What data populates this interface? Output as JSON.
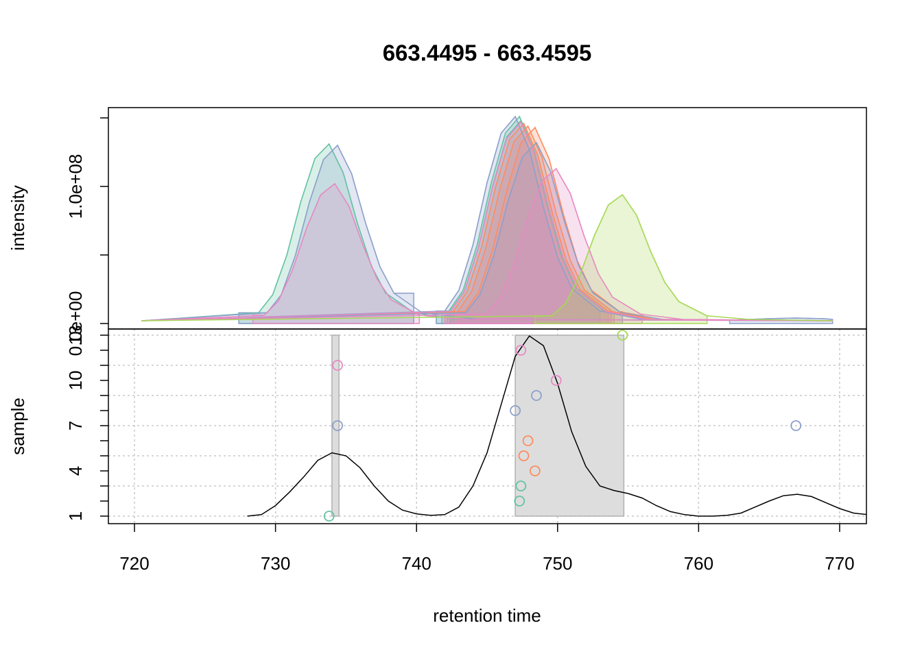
{
  "chart_data": [
    {
      "type": "area",
      "title": "663.4495 - 663.4595",
      "ylabel": "intensity",
      "xlim": [
        718.15,
        771.9
      ],
      "ylim": [
        -4000000,
        157500000
      ],
      "yticks": [
        {
          "value": 0,
          "label": "0.0e+00"
        },
        {
          "value": 100000000,
          "label": "1.0e+08"
        }
      ],
      "yminorticks": [
        50000000,
        150000000
      ],
      "fill_opacity": 0.25,
      "series": [
        {
          "color": "#66c2a5",
          "x": [
            720.5,
            728.8,
            729.8,
            730.8,
            731.8,
            732.8,
            733.8,
            734.8,
            735.8,
            736.8,
            737.8,
            739.8,
            742.8,
            769.5
          ],
          "values": [
            2000000,
            7900000,
            21000000,
            49800000,
            89100000,
            120500000,
            131000000,
            110000000,
            73400000,
            41900000,
            22300000,
            7900000,
            3000000,
            2000000
          ],
          "peaks": [
            [
              727.4,
              739.8
            ]
          ]
        },
        {
          "color": "#66c2a5",
          "x": [
            720.5,
            742.3,
            743.3,
            744.3,
            745.3,
            746.3,
            747.3,
            748.3,
            749.3,
            750.3,
            751.3,
            753.3,
            756.3,
            769.5
          ],
          "values": [
            2000000,
            9100000,
            24200000,
            57400000,
            102700000,
            138900000,
            151000000,
            126800000,
            84600000,
            48300000,
            25700000,
            9100000,
            3000000,
            2000000
          ],
          "peaks": [
            [
              741.4,
              753.6
            ]
          ]
        },
        {
          "color": "#66c2a5",
          "x": [
            720.5,
            742.4,
            743.4,
            744.4,
            745.4,
            746.4,
            747.4,
            748.4,
            749.4,
            750.4,
            751.4,
            753.4,
            756.4,
            769.5
          ],
          "values": [
            2000000,
            8900000,
            23700000,
            56200000,
            100600000,
            136200000,
            148000000,
            124300000,
            82900000,
            47400000,
            25200000,
            8900000,
            3000000,
            2000000
          ],
          "peaks": [
            [
              741.8,
              753.8
            ]
          ]
        },
        {
          "color": "#fc8d62",
          "x": [
            720.5,
            743.4,
            744.4,
            745.4,
            746.4,
            747.4,
            748.4,
            749.4,
            750.4,
            751.4,
            752.4,
            754.4,
            757.4,
            769.5
          ],
          "values": [
            2000000,
            8600000,
            22900000,
            54300000,
            97200000,
            131600000,
            143000000,
            120100000,
            80100000,
            45800000,
            24300000,
            8600000,
            3000000,
            2000000
          ],
          "peaks": [
            [
              742.2,
              754.6
            ]
          ]
        },
        {
          "color": "#fc8d62",
          "x": [
            720.5,
            742.6,
            743.6,
            744.6,
            745.6,
            746.6,
            747.6,
            748.6,
            749.6,
            750.6,
            751.6,
            753.6,
            756.6,
            769.5
          ],
          "values": [
            2000000,
            8800000,
            23400000,
            55500000,
            99300000,
            134300000,
            146000000,
            122600000,
            81800000,
            46700000,
            24800000,
            8800000,
            3000000,
            2000000
          ],
          "peaks": [
            [
              742.0,
              753.8
            ]
          ]
        },
        {
          "color": "#fc8d62",
          "x": [
            720.5,
            742.9,
            743.9,
            744.9,
            745.9,
            746.9,
            747.9,
            748.9,
            749.9,
            750.9,
            751.9,
            753.9,
            756.9,
            769.5
          ],
          "values": [
            2000000,
            8600000,
            23000000,
            54700000,
            97900000,
            132500000,
            144000000,
            121000000,
            80600000,
            46100000,
            24500000,
            8600000,
            3000000,
            2000000
          ],
          "peaks": [
            [
              742.6,
              754.0
            ]
          ]
        },
        {
          "color": "#8da0cb",
          "x": [
            720.5,
            729.4,
            730.4,
            731.4,
            732.4,
            733.4,
            734.4,
            735.4,
            736.4,
            737.4,
            738.4,
            740.4,
            744.4,
            762.4,
            764.9,
            766.9,
            768.9,
            769.5
          ],
          "values": [
            2000000,
            7800000,
            20800000,
            49400000,
            88400000,
            119600000,
            130000000,
            109200000,
            72800000,
            41600000,
            22100000,
            7800000,
            3000000,
            2500000,
            3500000,
            4000000,
            3500000,
            3000000
          ],
          "peaks": [
            [
              727.4,
              739.8
            ],
            [
              762.2,
              769.5
            ]
          ]
        },
        {
          "color": "#8da0cb",
          "x": [
            720.5,
            742.0,
            743.0,
            744.0,
            745.0,
            746.0,
            747.0,
            748.0,
            749.0,
            750.0,
            751.0,
            753.0,
            756.0,
            769.5
          ],
          "values": [
            2000000,
            9100000,
            24200000,
            57400000,
            102700000,
            138900000,
            151000000,
            126800000,
            84600000,
            48300000,
            25700000,
            9100000,
            3000000,
            2000000
          ],
          "peaks": [
            [
              741.4,
              753.0
            ]
          ]
        },
        {
          "color": "#8da0cb",
          "x": [
            720.5,
            743.5,
            744.5,
            745.5,
            746.5,
            747.5,
            748.5,
            749.5,
            750.5,
            751.5,
            752.5,
            754.5,
            757.5,
            769.5
          ],
          "values": [
            2000000,
            7900000,
            21100000,
            50200000,
            89800000,
            121400000,
            132000000,
            110900000,
            73900000,
            42200000,
            22400000,
            7900000,
            3000000,
            2000000
          ],
          "peaks": [
            [
              742.4,
              754.6
            ]
          ]
        },
        {
          "color": "#e78ac3",
          "x": [
            720.5,
            744.9,
            745.9,
            746.9,
            747.9,
            748.9,
            749.9,
            750.9,
            751.9,
            752.9,
            753.9,
            755.9,
            758.9,
            769.5
          ],
          "values": [
            2000000,
            6800000,
            18100000,
            42900000,
            76800000,
            104000000,
            113000000,
            94900000,
            63300000,
            36200000,
            19200000,
            6800000,
            3000000,
            2000000
          ],
          "peaks": [
            [
              743.0,
              756.0
            ]
          ]
        },
        {
          "color": "#e78ac3",
          "x": [
            720.5,
            729.2,
            730.2,
            731.2,
            732.2,
            733.2,
            734.2,
            735.2,
            736.2,
            737.2,
            738.2,
            740.2,
            743.2,
            769.5
          ],
          "values": [
            2000000,
            6100000,
            16300000,
            38800000,
            69400000,
            93800000,
            102000000,
            85700000,
            57100000,
            32600000,
            17300000,
            6100000,
            3000000,
            2000000
          ],
          "peaks": [
            [
              728.4,
              740.2
            ]
          ]
        },
        {
          "color": "#e78ac3",
          "x": [
            720.5,
            742.4,
            743.4,
            744.4,
            745.4,
            746.4,
            747.4,
            748.4,
            749.4,
            750.4,
            751.4,
            753.4,
            756.4,
            769.5
          ],
          "values": [
            2000000,
            8800000,
            23500000,
            55900000,
            100000000,
            135200000,
            147000000,
            123500000,
            82300000,
            47000000,
            25000000,
            8800000,
            3000000,
            2000000
          ],
          "peaks": [
            [
              742.0,
              753.6
            ]
          ]
        },
        {
          "color": "#a6d854",
          "x": [
            720.5,
            749.6,
            750.6,
            751.6,
            752.6,
            753.6,
            754.6,
            755.6,
            756.6,
            757.6,
            758.6,
            760.6,
            763.6,
            769.5
          ],
          "values": [
            2000000,
            5600000,
            15000000,
            35700000,
            63900000,
            86500000,
            94000000,
            79000000,
            52600000,
            30100000,
            16000000,
            5600000,
            3000000,
            2000000
          ],
          "peaks": [
            [
              748.4,
              760.6
            ]
          ]
        }
      ]
    },
    {
      "type": "scatter",
      "xlabel": "retention time",
      "ylabel": "sample",
      "xlim": [
        718.15,
        771.9
      ],
      "ylim": [
        0.5,
        13.41
      ],
      "xticks": [
        720,
        730,
        740,
        750,
        760,
        770
      ],
      "yticks": [
        1,
        4,
        7,
        10,
        13
      ],
      "yminorticks": [
        2,
        3,
        5,
        6,
        8,
        9,
        11,
        12
      ],
      "ygrid": [
        1,
        3,
        5,
        7,
        9,
        11,
        13
      ],
      "grid": true,
      "x": [
        733.8,
        747.3,
        747.4,
        748.4,
        747.6,
        747.9,
        734.4,
        766.9,
        747.0,
        748.5,
        749.9,
        734.4,
        747.4,
        754.6
      ],
      "values": [
        1,
        2,
        3,
        4,
        5,
        6,
        7,
        7,
        8,
        9,
        10,
        11,
        12,
        13
      ],
      "colors": [
        "#66c2a5",
        "#66c2a5",
        "#66c2a5",
        "#fc8d62",
        "#fc8d62",
        "#fc8d62",
        "#8da0cb",
        "#8da0cb",
        "#8da0cb",
        "#8da0cb",
        "#e78ac3",
        "#e78ac3",
        "#e78ac3",
        "#a6d854"
      ],
      "rect_color": "#dddddd",
      "rects": [
        {
          "xmin": 734.0,
          "xmax": 734.5,
          "ymin": 1,
          "ymax": 13
        },
        {
          "xmin": 747.0,
          "xmax": 754.7,
          "ymin": 1,
          "ymax": 13
        }
      ],
      "density": {
        "color": "#000000",
        "x": [
          728,
          729,
          730,
          731,
          732,
          733,
          734,
          735,
          736,
          737,
          738,
          739,
          740,
          741,
          742,
          743,
          744,
          745,
          746,
          747,
          748,
          749,
          750,
          751,
          752,
          753,
          754,
          755,
          756,
          757,
          758,
          759,
          760,
          761,
          762,
          763,
          764,
          765,
          766,
          767,
          768,
          769,
          770,
          771,
          772
        ],
        "values": [
          1.0,
          1.1,
          1.7,
          2.6,
          3.6,
          4.7,
          5.2,
          5.0,
          4.2,
          3.0,
          2.0,
          1.4,
          1.15,
          1.05,
          1.1,
          1.6,
          3.0,
          5.2,
          8.4,
          11.6,
          12.95,
          12.3,
          9.8,
          6.6,
          4.3,
          3.0,
          2.7,
          2.5,
          2.2,
          1.7,
          1.3,
          1.1,
          1.0,
          1.0,
          1.05,
          1.2,
          1.6,
          2.0,
          2.35,
          2.45,
          2.3,
          1.9,
          1.5,
          1.2,
          1.1
        ]
      }
    }
  ]
}
